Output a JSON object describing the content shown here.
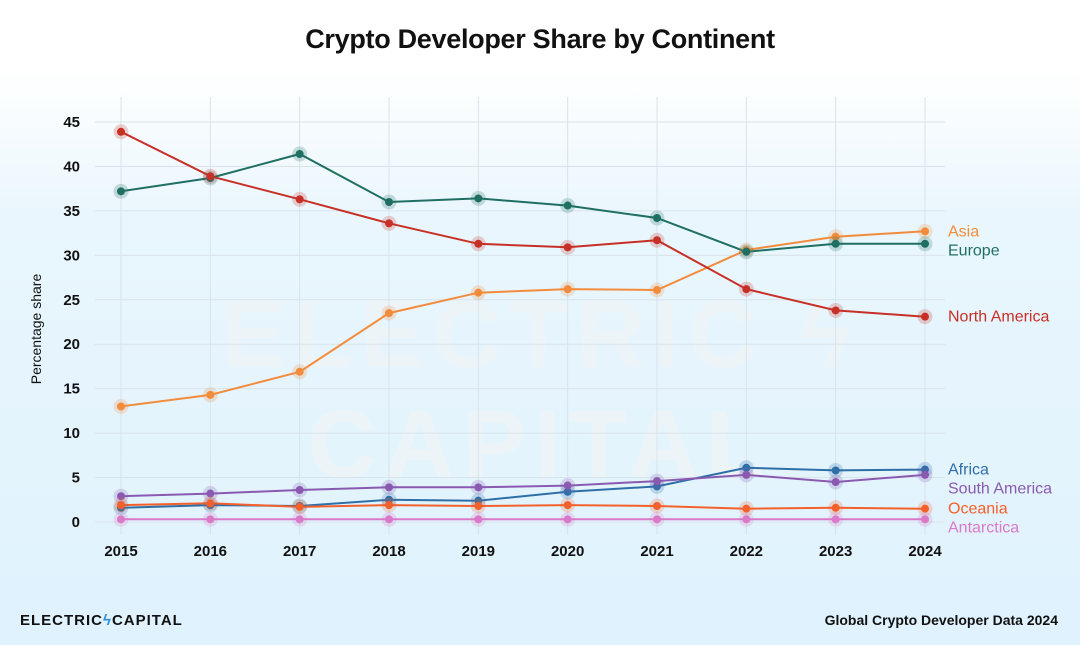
{
  "chart_data": {
    "type": "line",
    "title": "Crypto Developer Share by Continent",
    "ylabel": "Percentage share",
    "xlabel": "",
    "x": [
      2015,
      2016,
      2017,
      2018,
      2019,
      2020,
      2021,
      2022,
      2023,
      2024
    ],
    "ylim": [
      0,
      45
    ],
    "yticks": [
      0,
      5,
      10,
      15,
      20,
      25,
      30,
      35,
      40,
      45
    ],
    "grid": true,
    "legend": "end-of-line labels on right",
    "series": [
      {
        "name": "Asia",
        "color": "#f28c3c",
        "values": [
          13.0,
          14.3,
          16.9,
          23.5,
          25.8,
          26.2,
          26.1,
          30.6,
          32.1,
          32.7
        ]
      },
      {
        "name": "Europe",
        "color": "#1f6f63",
        "values": [
          37.2,
          38.7,
          41.4,
          36.0,
          36.4,
          35.6,
          34.2,
          30.4,
          31.3,
          31.3
        ]
      },
      {
        "name": "North America",
        "color": "#c63027",
        "values": [
          43.9,
          38.9,
          36.3,
          33.6,
          31.3,
          30.9,
          31.7,
          26.2,
          23.8,
          23.1
        ]
      },
      {
        "name": "Africa",
        "color": "#2f6fa8",
        "values": [
          1.6,
          1.9,
          1.8,
          2.5,
          2.4,
          3.4,
          4.0,
          6.1,
          5.8,
          5.9
        ]
      },
      {
        "name": "South America",
        "color": "#8a5ab1",
        "values": [
          2.9,
          3.2,
          3.6,
          3.9,
          3.9,
          4.1,
          4.6,
          5.3,
          4.5,
          5.3
        ]
      },
      {
        "name": "Oceania",
        "color": "#f4602b",
        "values": [
          1.9,
          2.1,
          1.7,
          1.9,
          1.8,
          1.9,
          1.8,
          1.5,
          1.6,
          1.5
        ]
      },
      {
        "name": "Antarctica",
        "color": "#db79c9",
        "values": [
          0.3,
          0.3,
          0.3,
          0.3,
          0.3,
          0.3,
          0.3,
          0.3,
          0.3,
          0.3
        ]
      }
    ]
  },
  "footer": {
    "brand_left": "ELECTRIC",
    "brand_bolt": "ϟ",
    "brand_right": "CAPITAL",
    "source": "Global Crypto Developer Data 2024"
  },
  "watermark": "ELECTRIC ϟ CAPITAL"
}
